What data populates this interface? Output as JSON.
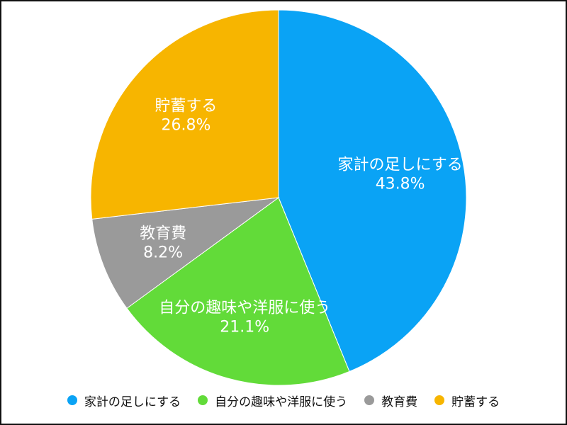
{
  "chart_data": {
    "type": "pie",
    "start_angle_deg": 0,
    "direction": "clockwise",
    "legend_position": "bottom",
    "slices": [
      {
        "label": "家計の足しにする",
        "value": 43.8,
        "percent_text": "43.8%",
        "color": "#0AA3F5"
      },
      {
        "label": "自分の趣味や洋服に使う",
        "value": 21.1,
        "percent_text": "21.1%",
        "color": "#62DB39"
      },
      {
        "label": "教育費",
        "value": 8.2,
        "percent_text": "8.2%",
        "color": "#9A9A9A"
      },
      {
        "label": "貯蓄する",
        "value": 26.8,
        "percent_text": "26.8%",
        "color": "#F7B500"
      }
    ]
  }
}
